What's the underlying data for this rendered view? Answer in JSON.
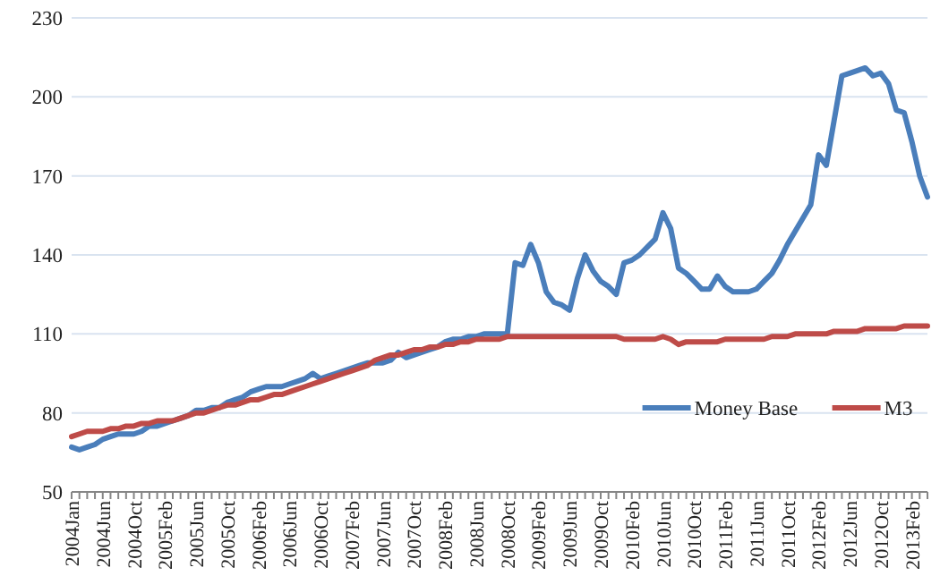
{
  "chart_data": {
    "type": "line",
    "categories": [
      "2004Jan",
      null,
      null,
      null,
      "2004Jun",
      null,
      null,
      null,
      "2004Oct",
      null,
      null,
      null,
      "2005Feb",
      null,
      null,
      null,
      "2005Jun",
      null,
      null,
      null,
      "2005Oct",
      null,
      null,
      null,
      "2006Feb",
      null,
      null,
      null,
      "2006Jun",
      null,
      null,
      null,
      "2006Oct",
      null,
      null,
      null,
      "2007Feb",
      null,
      null,
      null,
      "2007Jun",
      null,
      null,
      null,
      "2007Oct",
      null,
      null,
      null,
      "2008Feb",
      null,
      null,
      null,
      "2008Jun",
      null,
      null,
      null,
      "2008Oct",
      null,
      null,
      null,
      "2009Feb",
      null,
      null,
      null,
      "2009Jun",
      null,
      null,
      null,
      "2009Oct",
      null,
      null,
      null,
      "2010Feb",
      null,
      null,
      null,
      "2010Jun",
      null,
      null,
      null,
      "2010Oct",
      null,
      null,
      null,
      "2011Feb",
      null,
      null,
      null,
      "2011Jun",
      null,
      null,
      null,
      "2011Oct",
      null,
      null,
      null,
      "2012Feb",
      null,
      null,
      null,
      "2012Jun",
      null,
      null,
      null,
      "2012Oct",
      null,
      null,
      null,
      "2013Feb",
      null,
      null
    ],
    "series": [
      {
        "name": "Money Base",
        "color": "#4a7ebb",
        "values": [
          67,
          66,
          67,
          68,
          70,
          71,
          72,
          72,
          72,
          73,
          75,
          75,
          76,
          77,
          78,
          79,
          81,
          81,
          82,
          82,
          84,
          85,
          86,
          88,
          89,
          90,
          90,
          90,
          91,
          92,
          93,
          95,
          93,
          94,
          95,
          96,
          97,
          98,
          99,
          99,
          99,
          100,
          103,
          101,
          102,
          103,
          104,
          105,
          107,
          108,
          108,
          109,
          109,
          110,
          110,
          110,
          110,
          137,
          136,
          144,
          137,
          126,
          122,
          121,
          119,
          131,
          140,
          134,
          130,
          128,
          125,
          137,
          138,
          140,
          143,
          146,
          156,
          150,
          135,
          133,
          130,
          127,
          127,
          132,
          128,
          126,
          126,
          126,
          127,
          130,
          133,
          138,
          144,
          149,
          154,
          159,
          178,
          174,
          191,
          208,
          209,
          210,
          211,
          208,
          209,
          205,
          195,
          194,
          183,
          170,
          162
        ]
      },
      {
        "name": "M3",
        "color": "#be4b48",
        "values": [
          71,
          72,
          73,
          73,
          73,
          74,
          74,
          75,
          75,
          76,
          76,
          77,
          77,
          77,
          78,
          79,
          80,
          80,
          81,
          82,
          83,
          83,
          84,
          85,
          85,
          86,
          87,
          87,
          88,
          89,
          90,
          91,
          92,
          93,
          94,
          95,
          96,
          97,
          98,
          100,
          101,
          102,
          102,
          103,
          104,
          104,
          105,
          105,
          106,
          106,
          107,
          107,
          108,
          108,
          108,
          108,
          109,
          109,
          109,
          109,
          109,
          109,
          109,
          109,
          109,
          109,
          109,
          109,
          109,
          109,
          109,
          108,
          108,
          108,
          108,
          108,
          109,
          108,
          106,
          107,
          107,
          107,
          107,
          107,
          108,
          108,
          108,
          108,
          108,
          108,
          109,
          109,
          109,
          110,
          110,
          110,
          110,
          110,
          111,
          111,
          111,
          111,
          112,
          112,
          112,
          112,
          112,
          113,
          113,
          113,
          113
        ]
      }
    ],
    "ylim": [
      50,
      230
    ],
    "yticks": [
      50,
      80,
      110,
      140,
      170,
      200,
      230
    ],
    "grid": "y",
    "legend": "bottom right",
    "marker": "none",
    "line_style": "solid"
  }
}
